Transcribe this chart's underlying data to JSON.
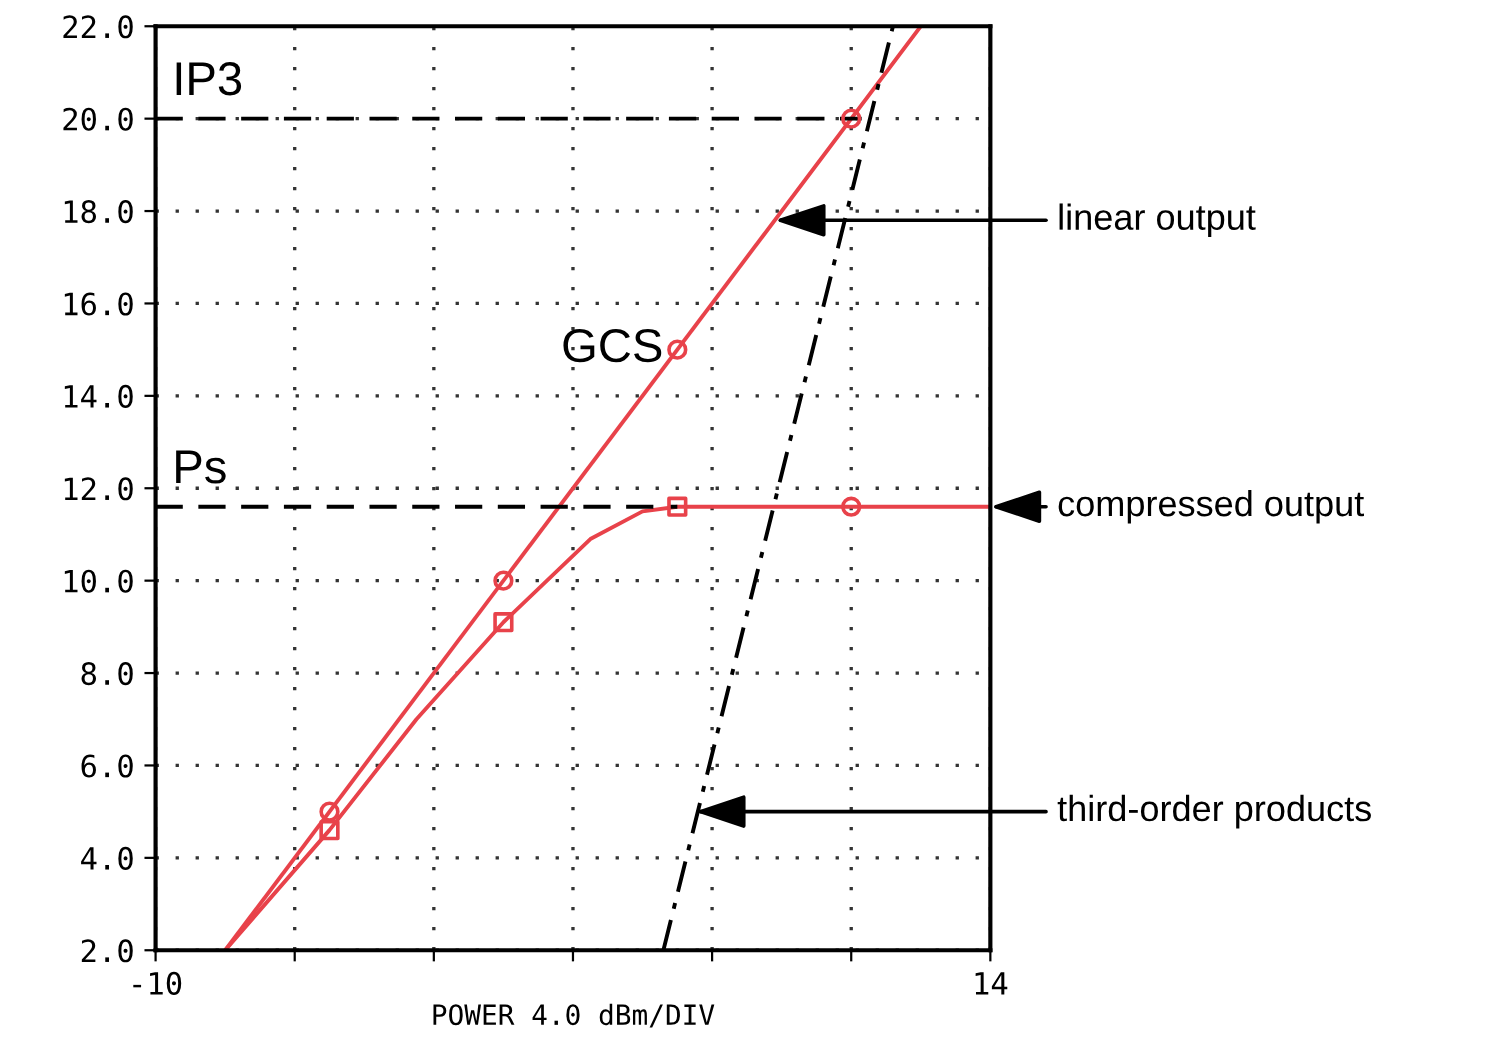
{
  "chart_data": {
    "type": "line",
    "xlabel": "POWER 4.0 dBm/DIV",
    "xlim": [
      -10,
      14
    ],
    "xticks": [
      -10,
      {
        "value": -6,
        "label": null
      },
      {
        "value": -2,
        "label": null
      },
      {
        "value": 2,
        "label": null
      },
      {
        "value": 6,
        "label": null
      },
      {
        "value": 10,
        "label": null
      },
      14
    ],
    "ylim": [
      2,
      22
    ],
    "yticks": [
      {
        "value": 2,
        "label": "2.0"
      },
      {
        "value": 4,
        "label": "4.0"
      },
      {
        "value": 6,
        "label": "6.0"
      },
      {
        "value": 8,
        "label": "8.0"
      },
      {
        "value": 10,
        "label": "10.0"
      },
      {
        "value": 12,
        "label": "12.0"
      },
      {
        "value": 14,
        "label": "14.0"
      },
      {
        "value": 16,
        "label": "16.0"
      },
      {
        "value": 18,
        "label": "18.0"
      },
      {
        "value": 20,
        "label": "20.0"
      },
      {
        "value": 22,
        "label": "22.0"
      }
    ],
    "grid": true,
    "series": [
      {
        "type": "line",
        "color": "#e8424a",
        "marker": "none",
        "line_style": "solid",
        "x": [
          -8,
          12
        ],
        "values": [
          2,
          22
        ]
      },
      {
        "type": "scatter",
        "color": "#e8424a",
        "marker": "circle",
        "x": [
          -5,
          0,
          5,
          10
        ],
        "values": [
          5.0,
          10.0,
          15.0,
          20.0
        ]
      },
      {
        "type": "line",
        "color": "#e8424a",
        "marker": "none",
        "line_style": "solid",
        "x": [
          -8,
          -5,
          -2.5,
          0,
          2.5,
          4,
          5,
          10,
          14
        ],
        "values": [
          2,
          4.6,
          7.0,
          9.1,
          10.9,
          11.5,
          11.6,
          11.6,
          11.6
        ]
      },
      {
        "type": "scatter",
        "color": "#e8424a",
        "marker": "square",
        "x": [
          -5,
          0,
          5
        ],
        "values": [
          4.6,
          9.1,
          11.6
        ]
      },
      {
        "type": "scatter",
        "color": "#e8424a",
        "marker": "circle",
        "x": [
          10
        ],
        "values": [
          11.6
        ]
      },
      {
        "type": "line",
        "color": "#000000",
        "marker": "none",
        "line_style": "dashdot",
        "x": [
          4.6,
          11.2
        ],
        "values": [
          2,
          22
        ]
      },
      {
        "type": "line",
        "color": "#000000",
        "marker": "none",
        "line_style": "dashed",
        "x": [
          -10,
          10.3
        ],
        "values": [
          20,
          20
        ]
      },
      {
        "type": "line",
        "color": "#000000",
        "marker": "none",
        "line_style": "dashed",
        "x": [
          -10,
          5
        ],
        "values": [
          11.6,
          11.6
        ]
      }
    ],
    "annotations": [
      "IP3",
      "Ps",
      {
        "text": "GCS",
        "x": 5,
        "y": 15
      },
      {
        "text": "linear output",
        "x": 7.8,
        "y": 17.8
      },
      {
        "text": "compressed output",
        "x": 14,
        "y": 11.6
      },
      {
        "text": "third-order products",
        "x": 5.5,
        "y": 5.0
      }
    ]
  }
}
